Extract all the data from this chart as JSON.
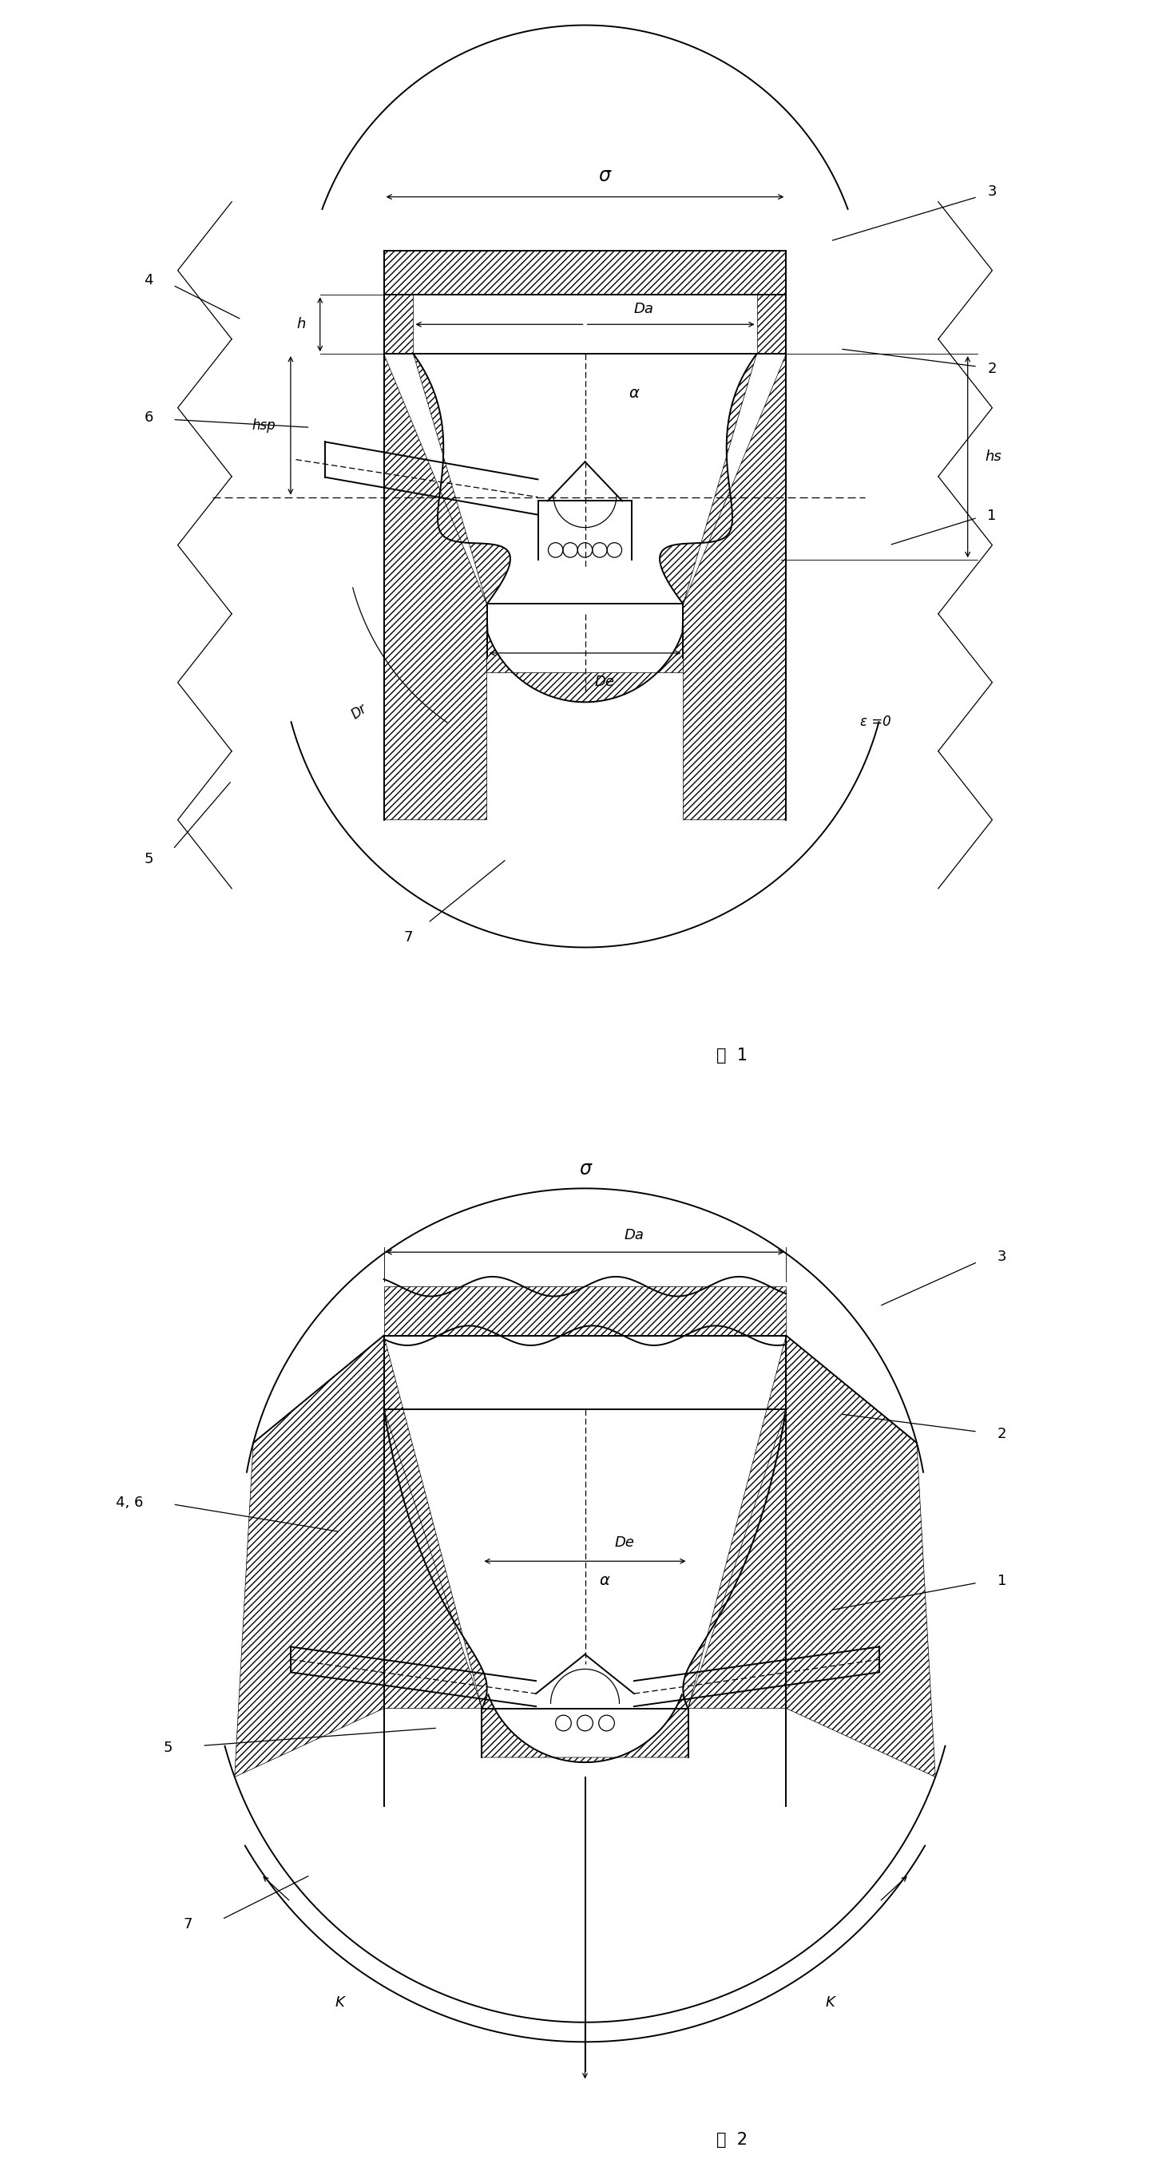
{
  "fig_width": 14.65,
  "fig_height": 27.24,
  "background_color": "#ffffff",
  "fig1_title": "图  1",
  "fig2_title": "图  2",
  "lw": 1.4,
  "lw_thin": 0.9,
  "labels_fig1": {
    "sigma": "σ",
    "Da": "Da",
    "De": "De",
    "alpha": "α",
    "h": "h",
    "hsp": "hsp",
    "hs": "hs",
    "epsilon": "ε =0",
    "Dr": "Dr"
  },
  "labels_fig2": {
    "sigma": "σ",
    "Da": "Da",
    "De": "De",
    "alpha": "α",
    "K_left": "K",
    "K_right": "K"
  }
}
